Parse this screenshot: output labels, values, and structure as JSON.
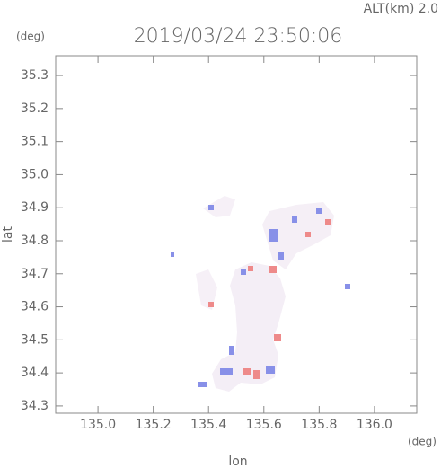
{
  "chart_data": {
    "type": "radar-image",
    "title": "2019/03/24 23:50:06",
    "altitude_label": "ALT(km)  2.0",
    "y_unit": "(deg)",
    "x_unit": "(deg)",
    "x_label": "lon",
    "y_label": "lat",
    "xlim": [
      134.847,
      136.153
    ],
    "ylim": [
      34.278,
      35.36
    ],
    "xticks": [
      {
        "value": 135,
        "label": "135.0"
      },
      135.2,
      135.4,
      135.6,
      135.8,
      {
        "value": 136,
        "label": "136.0"
      }
    ],
    "yticks": [
      34.3,
      34.4,
      34.5,
      34.6,
      34.7,
      34.8,
      34.9,
      {
        "value": 35,
        "label": "35.0"
      },
      35.1,
      35.2,
      35.3
    ]
  }
}
